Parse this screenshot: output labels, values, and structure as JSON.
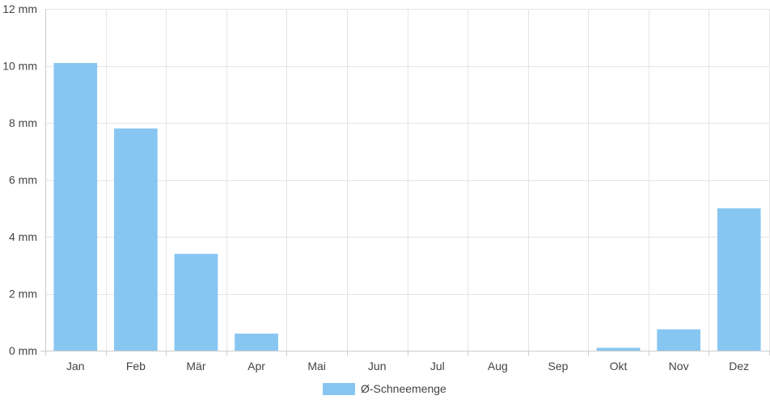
{
  "chart_data": {
    "type": "bar",
    "categories": [
      "Jan",
      "Feb",
      "Mär",
      "Apr",
      "Mai",
      "Jun",
      "Jul",
      "Aug",
      "Sep",
      "Okt",
      "Nov",
      "Dez"
    ],
    "series": [
      {
        "name": "Ø-Schneemenge",
        "values": [
          10.1,
          7.8,
          3.4,
          0.6,
          0,
          0,
          0,
          0,
          0,
          0.1,
          0.75,
          5.0
        ]
      }
    ],
    "y_unit": "mm",
    "ylim": [
      0,
      12
    ],
    "yticks": [
      0,
      2,
      4,
      6,
      8,
      10,
      12
    ],
    "ytick_labels": [
      "0 mm",
      "2 mm",
      "4 mm",
      "6 mm",
      "8 mm",
      "10 mm",
      "12 mm"
    ],
    "grid": true,
    "legend_position": "bottom",
    "bar_color": "#88c6f2",
    "grid_color": "#e5e5e5",
    "axis_color": "#cccccc",
    "text_color": "#444444"
  }
}
